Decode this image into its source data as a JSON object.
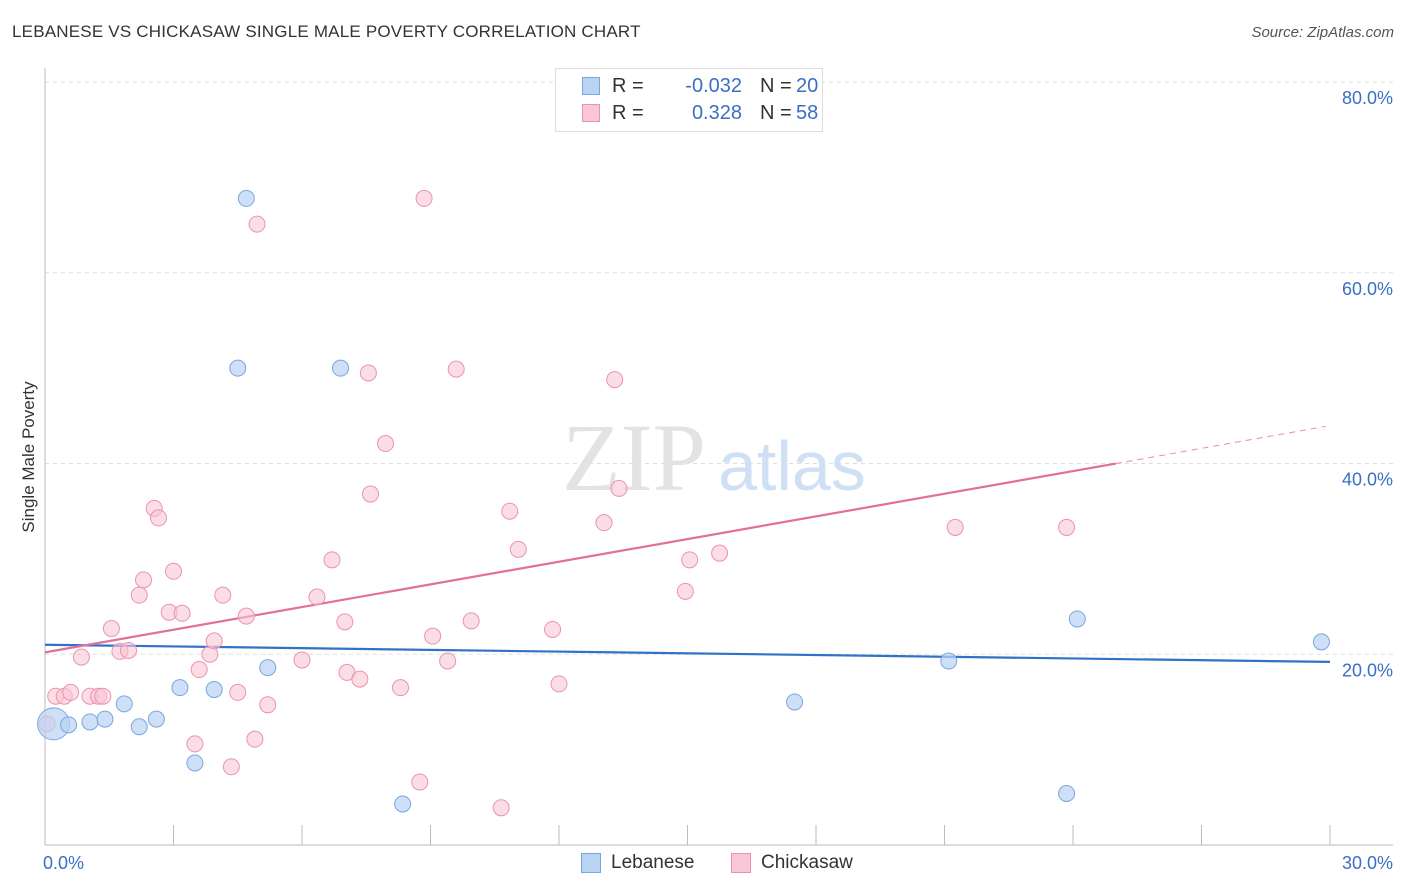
{
  "title": "LEBANESE VS CHICKASAW SINGLE MALE POVERTY CORRELATION CHART",
  "source": "Source: ZipAtlas.com",
  "watermark": {
    "zip": "ZIP",
    "atlas": "atlas"
  },
  "colors": {
    "lebanese_fill": "#b9d3f5",
    "lebanese_stroke": "#7aa6de",
    "lebanese_line": "#2f72c8",
    "chickasaw_fill": "#f8c6d5",
    "chickasaw_stroke": "#eb93ae",
    "chickasaw_line": "#e46f97",
    "tick_label": "#3a6fc4",
    "grid": "#dddddd"
  },
  "legend_top": {
    "rows": [
      {
        "series": "Lebanese",
        "r_label": "R =",
        "r_value": "-0.032",
        "n_label": "N =",
        "n_value": "20"
      },
      {
        "series": "Chickasaw",
        "r_label": "R =",
        "r_value": "0.328",
        "n_label": "N =",
        "n_value": "58"
      }
    ]
  },
  "legend_bottom": [
    "Lebanese",
    "Chickasaw"
  ],
  "chart_data": {
    "type": "scatter",
    "title": "LEBANESE VS CHICKASAW SINGLE MALE POVERTY CORRELATION CHART",
    "xlabel": "",
    "ylabel": "Single Male Poverty",
    "xlim": [
      0,
      30
    ],
    "ylim": [
      0,
      82
    ],
    "x_tick_labels": [
      {
        "value": 0,
        "label": "0.0%"
      },
      {
        "value": 30,
        "label": "30.0%"
      }
    ],
    "y_tick_labels": [
      {
        "value": 20,
        "label": "20.0%"
      },
      {
        "value": 40,
        "label": "40.0%"
      },
      {
        "value": 60,
        "label": "60.0%"
      },
      {
        "value": 80,
        "label": "80.0%"
      }
    ],
    "grid": "horizontal dashed",
    "legend_position": "top-center and bottom-center",
    "series": [
      {
        "name": "Lebanese",
        "points": [
          {
            "x": 0.2,
            "y": 12.7,
            "big": true
          },
          {
            "x": 0.55,
            "y": 12.6
          },
          {
            "x": 1.05,
            "y": 12.9
          },
          {
            "x": 1.4,
            "y": 13.2
          },
          {
            "x": 1.85,
            "y": 14.8
          },
          {
            "x": 2.2,
            "y": 12.4
          },
          {
            "x": 2.6,
            "y": 13.2
          },
          {
            "x": 3.15,
            "y": 16.5
          },
          {
            "x": 3.5,
            "y": 8.6
          },
          {
            "x": 3.95,
            "y": 16.3
          },
          {
            "x": 4.5,
            "y": 50.0
          },
          {
            "x": 4.7,
            "y": 67.8
          },
          {
            "x": 5.2,
            "y": 18.6
          },
          {
            "x": 6.9,
            "y": 50.0
          },
          {
            "x": 8.35,
            "y": 4.3
          },
          {
            "x": 17.5,
            "y": 15.0
          },
          {
            "x": 21.1,
            "y": 19.3
          },
          {
            "x": 23.85,
            "y": 5.4
          },
          {
            "x": 24.1,
            "y": 23.7
          },
          {
            "x": 29.8,
            "y": 21.3
          }
        ],
        "trend": {
          "x0": 0,
          "y0": 21.0,
          "x1": 30,
          "y1": 19.2
        }
      },
      {
        "name": "Chickasaw",
        "points": [
          {
            "x": 0.05,
            "y": 12.7
          },
          {
            "x": 0.25,
            "y": 15.6
          },
          {
            "x": 0.45,
            "y": 15.6
          },
          {
            "x": 0.6,
            "y": 16.0
          },
          {
            "x": 0.85,
            "y": 19.7
          },
          {
            "x": 1.05,
            "y": 15.6
          },
          {
            "x": 1.25,
            "y": 15.6
          },
          {
            "x": 1.35,
            "y": 15.6
          },
          {
            "x": 1.55,
            "y": 22.7
          },
          {
            "x": 1.75,
            "y": 20.3
          },
          {
            "x": 1.95,
            "y": 20.4
          },
          {
            "x": 2.2,
            "y": 26.2
          },
          {
            "x": 2.3,
            "y": 27.8
          },
          {
            "x": 2.55,
            "y": 35.3
          },
          {
            "x": 2.65,
            "y": 34.3
          },
          {
            "x": 2.9,
            "y": 24.4
          },
          {
            "x": 3.0,
            "y": 28.7
          },
          {
            "x": 3.2,
            "y": 24.3
          },
          {
            "x": 3.5,
            "y": 10.6
          },
          {
            "x": 3.6,
            "y": 18.4
          },
          {
            "x": 3.85,
            "y": 20.0
          },
          {
            "x": 3.95,
            "y": 21.4
          },
          {
            "x": 4.15,
            "y": 26.2
          },
          {
            "x": 4.35,
            "y": 8.2
          },
          {
            "x": 4.5,
            "y": 16.0
          },
          {
            "x": 4.7,
            "y": 24.0
          },
          {
            "x": 4.9,
            "y": 11.1
          },
          {
            "x": 4.95,
            "y": 65.1
          },
          {
            "x": 5.2,
            "y": 14.7
          },
          {
            "x": 6.0,
            "y": 19.4
          },
          {
            "x": 6.35,
            "y": 26.0
          },
          {
            "x": 6.7,
            "y": 29.9
          },
          {
            "x": 7.0,
            "y": 23.4
          },
          {
            "x": 7.05,
            "y": 18.1
          },
          {
            "x": 7.35,
            "y": 17.4
          },
          {
            "x": 7.55,
            "y": 49.5
          },
          {
            "x": 7.6,
            "y": 36.8
          },
          {
            "x": 7.95,
            "y": 42.1
          },
          {
            "x": 8.3,
            "y": 16.5
          },
          {
            "x": 8.75,
            "y": 6.6
          },
          {
            "x": 8.85,
            "y": 67.8
          },
          {
            "x": 9.05,
            "y": 21.9
          },
          {
            "x": 9.4,
            "y": 19.3
          },
          {
            "x": 9.6,
            "y": 49.9
          },
          {
            "x": 9.95,
            "y": 23.5
          },
          {
            "x": 10.65,
            "y": 3.9
          },
          {
            "x": 10.85,
            "y": 35.0
          },
          {
            "x": 11.05,
            "y": 31.0
          },
          {
            "x": 11.85,
            "y": 22.6
          },
          {
            "x": 12.0,
            "y": 16.9
          },
          {
            "x": 13.05,
            "y": 33.8
          },
          {
            "x": 13.3,
            "y": 48.8
          },
          {
            "x": 13.4,
            "y": 37.4
          },
          {
            "x": 14.95,
            "y": 26.6
          },
          {
            "x": 15.05,
            "y": 29.9
          },
          {
            "x": 15.75,
            "y": 30.6
          },
          {
            "x": 21.25,
            "y": 33.3
          },
          {
            "x": 23.85,
            "y": 33.3
          }
        ],
        "trend": {
          "x0": 0,
          "y0": 20.2,
          "x1": 25.0,
          "y1": 40.0,
          "dash_x1": 29.9,
          "dash_y1": 43.9
        }
      }
    ]
  }
}
